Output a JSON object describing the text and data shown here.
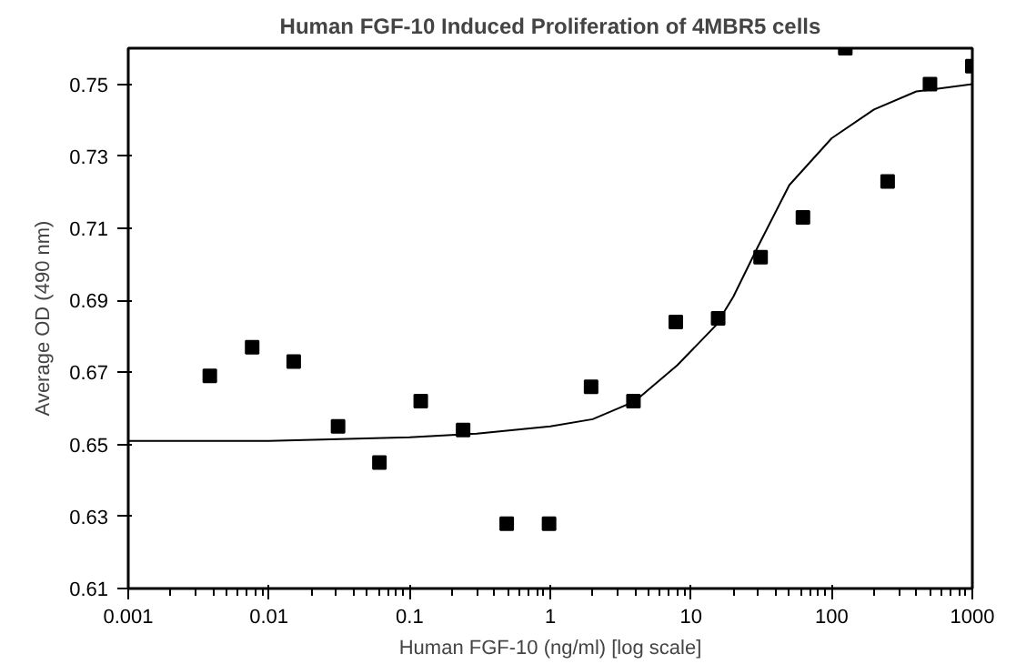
{
  "chart_data": {
    "type": "scatter",
    "title": "Human FGF-10 Induced Proliferation of 4MBR5 cells",
    "xlabel": "Human FGF-10 (ng/ml) [log scale]",
    "ylabel": "Average OD (490 nm)",
    "log": "x",
    "grid": false,
    "marker": "square",
    "xlim": [
      0.001,
      1000
    ],
    "xticks": [
      {
        "value": 0.001,
        "label": "0.001"
      },
      {
        "value": 0.01,
        "label": "0.01"
      },
      {
        "value": 0.1,
        "label": "0.1"
      },
      {
        "value": 1,
        "label": "1"
      },
      {
        "value": 10,
        "label": "10"
      },
      {
        "value": 100,
        "label": "100"
      },
      {
        "value": 1000,
        "label": "1000"
      }
    ],
    "ylim": [
      0.61,
      0.76
    ],
    "yticks": [
      {
        "value": 0.61,
        "label": "0.61"
      },
      {
        "value": 0.63,
        "label": "0.63"
      },
      {
        "value": 0.65,
        "label": "0.65"
      },
      {
        "value": 0.67,
        "label": "0.67"
      },
      {
        "value": 0.69,
        "label": "0.69"
      },
      {
        "value": 0.71,
        "label": "0.71"
      },
      {
        "value": 0.73,
        "label": "0.73"
      },
      {
        "value": 0.75,
        "label": "0.75"
      }
    ],
    "series": [
      {
        "color": "#000000",
        "x": [
          0.0038,
          0.0076,
          0.015,
          0.031,
          0.061,
          0.12,
          0.24,
          0.49,
          0.98,
          1.95,
          3.9,
          7.8,
          15.6,
          31.25,
          62.5,
          125,
          250,
          500,
          1000
        ],
        "values": [
          0.669,
          0.677,
          0.673,
          0.655,
          0.645,
          0.662,
          0.654,
          0.628,
          0.628,
          0.666,
          0.662,
          0.684,
          0.685,
          0.702,
          0.713,
          0.76,
          0.723,
          0.75,
          0.755
        ]
      },
      {
        "type": "line",
        "color": "#000000",
        "line_style": "solid",
        "marker": "none",
        "x": [
          0.001,
          0.01,
          0.1,
          0.3,
          1,
          2,
          4,
          8,
          15,
          20,
          30,
          50,
          100,
          200,
          400,
          1000
        ],
        "values": [
          0.651,
          0.651,
          0.652,
          0.653,
          0.655,
          0.657,
          0.662,
          0.672,
          0.683,
          0.691,
          0.705,
          0.722,
          0.735,
          0.743,
          0.748,
          0.75
        ]
      }
    ]
  }
}
